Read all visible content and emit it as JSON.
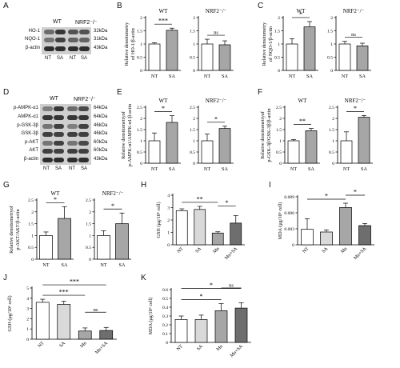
{
  "panel_letters": [
    "A",
    "B",
    "C",
    "D",
    "E",
    "F",
    "G",
    "H",
    "I",
    "J",
    "K"
  ],
  "blots": [
    {
      "id": "A",
      "groups": [
        "WT",
        "NRF2⁻/⁻"
      ],
      "rows": [
        {
          "label": "HO-1",
          "kda": "32kDa"
        },
        {
          "label": "NQO-1",
          "kda": "31kDa"
        },
        {
          "label": "β-actin",
          "kda": "43kDa"
        }
      ],
      "lanes": [
        "NT",
        "SA",
        "NT",
        "SA"
      ]
    },
    {
      "id": "D",
      "groups": [
        "WT",
        "NRF2⁻/⁻"
      ],
      "rows": [
        {
          "label": "p-AMPK-α1",
          "kda": "64kDa"
        },
        {
          "label": "AMPK-α1",
          "kda": "64kDa"
        },
        {
          "label": "p-GSK-3β",
          "kda": "46kDa"
        },
        {
          "label": "GSK-3β",
          "kda": "46kDa"
        },
        {
          "label": "p-AKT",
          "kda": "60kDa"
        },
        {
          "label": "AKT",
          "kda": "60kDa"
        },
        {
          "label": "β-actin",
          "kda": "43kDa"
        }
      ],
      "lanes": [
        "NT",
        "SA",
        "NT",
        "SA"
      ]
    }
  ],
  "chart_data": [
    {
      "panel": "B",
      "type": "bar",
      "ylabel": "Relative densitometry\nof HO-1/β-actin",
      "ylim": [
        0,
        2.0
      ],
      "yticks": [
        0,
        0.5,
        1.0,
        1.5,
        2.0
      ],
      "subplots": [
        {
          "title": "WT",
          "categories": [
            "NT",
            "SA"
          ],
          "values": [
            1.0,
            1.52
          ],
          "errors": [
            0.05,
            0.08
          ],
          "colors": [
            "#ffffff",
            "#a6a6a6"
          ],
          "sig": [
            {
              "from": 0,
              "to": 1,
              "text": "***"
            }
          ]
        },
        {
          "title": "NRF2⁻/⁻",
          "categories": [
            "NT",
            "SA"
          ],
          "values": [
            1.0,
            0.97
          ],
          "errors": [
            0.18,
            0.15
          ],
          "colors": [
            "#ffffff",
            "#a6a6a6"
          ],
          "sig": [
            {
              "from": 0,
              "to": 1,
              "text": "ns"
            }
          ]
        }
      ]
    },
    {
      "panel": "C",
      "type": "bar",
      "ylabel": "Relative densitometry\nof NQO-1/β-actin",
      "ylim": [
        0,
        2.0
      ],
      "yticks": [
        0,
        0.5,
        1.0,
        1.5,
        2.0
      ],
      "subplots": [
        {
          "title": "WT",
          "categories": [
            "NT",
            "SA"
          ],
          "values": [
            1.0,
            1.65
          ],
          "errors": [
            0.2,
            0.2
          ],
          "colors": [
            "#ffffff",
            "#a6a6a6"
          ],
          "sig": [
            {
              "from": 0,
              "to": 1,
              "text": "*"
            }
          ]
        },
        {
          "title": "NRF2⁻/⁻",
          "categories": [
            "NT",
            "SA"
          ],
          "values": [
            1.0,
            0.93
          ],
          "errors": [
            0.1,
            0.1
          ],
          "colors": [
            "#ffffff",
            "#a6a6a6"
          ],
          "sig": [
            {
              "from": 0,
              "to": 1,
              "text": "ns"
            }
          ]
        }
      ]
    },
    {
      "panel": "E",
      "type": "bar",
      "ylabel": "Relative densitometryof\np-AMPK-α1/AMPK-α1/β-actin",
      "ylim": [
        0,
        2.5
      ],
      "yticks": [
        0,
        0.5,
        1.0,
        1.5,
        2.0,
        2.5
      ],
      "subplots": [
        {
          "title": "WT",
          "categories": [
            "NT",
            "SA"
          ],
          "values": [
            1.0,
            1.82
          ],
          "errors": [
            0.35,
            0.3
          ],
          "colors": [
            "#ffffff",
            "#a6a6a6"
          ],
          "sig": [
            {
              "from": 0,
              "to": 1,
              "text": "*"
            }
          ]
        },
        {
          "title": "NRF2⁻/⁻",
          "categories": [
            "NT",
            "SA"
          ],
          "values": [
            1.0,
            1.55
          ],
          "errors": [
            0.3,
            0.1
          ],
          "colors": [
            "#ffffff",
            "#a6a6a6"
          ],
          "sig": [
            {
              "from": 0,
              "to": 1,
              "text": "*"
            }
          ]
        }
      ]
    },
    {
      "panel": "F",
      "type": "bar",
      "ylabel": "Relative densitometryof\np-GSK-3β/GSK-3β/β-actin",
      "ylim": [
        0,
        2.5
      ],
      "yticks": [
        0,
        0.5,
        1.0,
        1.5,
        2.0,
        2.5
      ],
      "subplots": [
        {
          "title": "WT",
          "categories": [
            "NT",
            "SA"
          ],
          "values": [
            1.0,
            1.45
          ],
          "errors": [
            0.06,
            0.1
          ],
          "colors": [
            "#ffffff",
            "#a6a6a6"
          ],
          "sig": [
            {
              "from": 0,
              "to": 1,
              "text": "**"
            }
          ]
        },
        {
          "title": "NRF2⁻/⁻",
          "categories": [
            "NT",
            "SA"
          ],
          "values": [
            1.0,
            2.05
          ],
          "errors": [
            0.4,
            0.08
          ],
          "colors": [
            "#ffffff",
            "#a6a6a6"
          ],
          "sig": [
            {
              "from": 0,
              "to": 1,
              "text": "*"
            }
          ]
        }
      ]
    },
    {
      "panel": "G",
      "type": "bar",
      "ylabel": "Relative densitometryof\np-AKT/AKT/β-actin",
      "ylim": [
        0,
        2.5
      ],
      "yticks": [
        0,
        0.5,
        1.0,
        1.5,
        2.0,
        2.5
      ],
      "subplots": [
        {
          "title": "WT",
          "categories": [
            "NT",
            "SA"
          ],
          "values": [
            1.0,
            1.72
          ],
          "errors": [
            0.15,
            0.5
          ],
          "colors": [
            "#ffffff",
            "#a6a6a6"
          ],
          "sig": [
            {
              "from": 0,
              "to": 1,
              "text": "*"
            }
          ]
        },
        {
          "title": "NRF2⁻/⁻",
          "categories": [
            "NT",
            "SA"
          ],
          "values": [
            1.0,
            1.5
          ],
          "errors": [
            0.2,
            0.45
          ],
          "colors": [
            "#ffffff",
            "#a6a6a6"
          ],
          "sig": [
            {
              "from": 0,
              "to": 1,
              "text": "*"
            }
          ]
        }
      ]
    },
    {
      "panel": "H",
      "type": "bar",
      "ylabel": "GSH (μg/10⁶ cell)",
      "ylim": [
        0,
        4
      ],
      "yticks": [
        0,
        1,
        2,
        3,
        4
      ],
      "subplots": [
        {
          "title": "",
          "categories": [
            "NT",
            "SA",
            "Mn",
            "Mn+SA"
          ],
          "values": [
            2.75,
            2.85,
            0.95,
            1.75
          ],
          "errors": [
            0.15,
            0.25,
            0.1,
            0.6
          ],
          "colors": [
            "#ffffff",
            "#d9d9d9",
            "#a6a6a6",
            "#6e6e6e"
          ],
          "sig": [
            {
              "from": 0,
              "to": 2,
              "text": "**"
            },
            {
              "from": 2,
              "to": 3,
              "text": "*"
            }
          ]
        }
      ]
    },
    {
      "panel": "I",
      "type": "bar",
      "ylabel": "MDA (μg/10⁶ cell)",
      "ylim": [
        0,
        0.009
      ],
      "yticks": [
        0,
        0.003,
        0.006,
        0.009
      ],
      "subplots": [
        {
          "title": "",
          "categories": [
            "NT",
            "SA",
            "Mn",
            "Mn+SA"
          ],
          "values": [
            0.0029,
            0.0024,
            0.007,
            0.0036
          ],
          "errors": [
            0.002,
            0.0004,
            0.0008,
            0.0004
          ],
          "colors": [
            "#ffffff",
            "#d9d9d9",
            "#a6a6a6",
            "#6e6e6e"
          ],
          "sig": [
            {
              "from": 0,
              "to": 2,
              "text": "*"
            },
            {
              "from": 2,
              "to": 3,
              "text": "*"
            }
          ]
        }
      ]
    },
    {
      "panel": "J",
      "type": "bar",
      "ylabel": "GSH (μg/10⁶ cell)",
      "ylim": [
        0,
        5
      ],
      "yticks": [
        0,
        1,
        2,
        3,
        4,
        5
      ],
      "subplots": [
        {
          "title": "",
          "categories": [
            "NT",
            "SA",
            "Mn",
            "Mn+SA"
          ],
          "values": [
            3.6,
            3.4,
            0.8,
            0.85
          ],
          "errors": [
            0.3,
            0.3,
            0.3,
            0.3
          ],
          "colors": [
            "#ffffff",
            "#d9d9d9",
            "#a6a6a6",
            "#6e6e6e"
          ],
          "sig": [
            {
              "from": 0,
              "to": 2,
              "text": "***"
            },
            {
              "from": 0,
              "to": 3,
              "text": "***"
            },
            {
              "from": 2,
              "to": 3,
              "text": "ns"
            }
          ]
        }
      ]
    },
    {
      "panel": "K",
      "type": "bar",
      "ylabel": "MDA (μg/10⁶ cell)",
      "ylim": [
        0,
        0.6
      ],
      "yticks": [
        0,
        0.1,
        0.2,
        0.3,
        0.4,
        0.5,
        0.6
      ],
      "subplots": [
        {
          "title": "",
          "categories": [
            "NT",
            "SA",
            "Mn",
            "Mn+SA"
          ],
          "values": [
            0.26,
            0.26,
            0.36,
            0.39
          ],
          "errors": [
            0.04,
            0.05,
            0.08,
            0.06
          ],
          "colors": [
            "#ffffff",
            "#d9d9d9",
            "#a6a6a6",
            "#6e6e6e"
          ],
          "sig": [
            {
              "from": 0,
              "to": 2,
              "text": "*"
            },
            {
              "from": 0,
              "to": 3,
              "text": "*"
            },
            {
              "from": 2,
              "to": 3,
              "text": "ns"
            }
          ]
        }
      ]
    }
  ]
}
